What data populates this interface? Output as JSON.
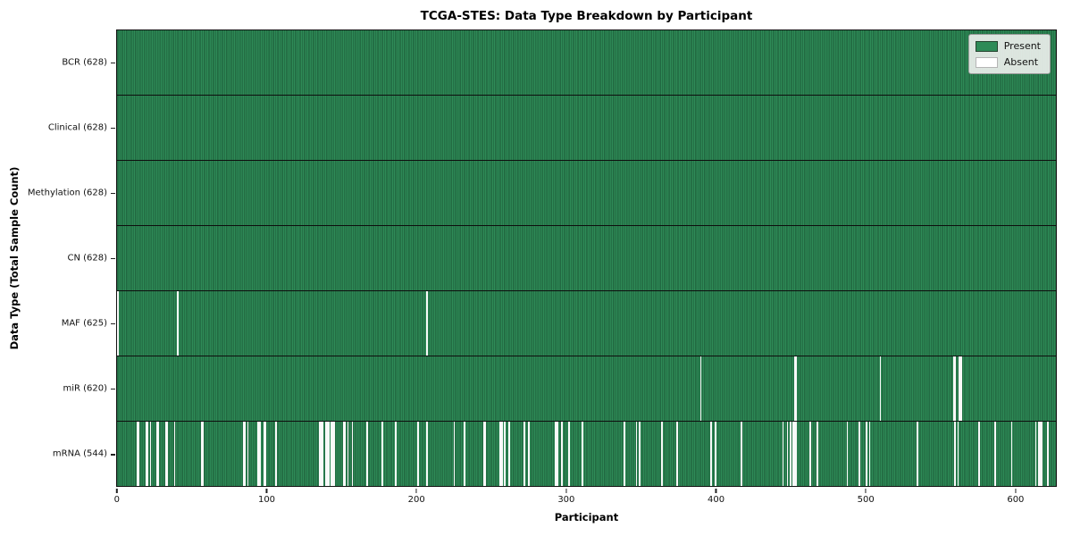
{
  "title": "TCGA-STES: Data Type Breakdown by Participant",
  "colors": {
    "present": "#2e8b57",
    "present_edge": "#16472b",
    "absent": "#ffffff",
    "plot_border": "#141414",
    "legend_bg": "#eceeec"
  },
  "chart_data": {
    "type": "heatmap",
    "title": "TCGA-STES: Data Type Breakdown by Participant",
    "xlabel": "Participant",
    "ylabel": "Data Type (Total Sample Count)",
    "n_participants": 628,
    "x_ticks": [
      0,
      100,
      200,
      300,
      400,
      500,
      600
    ],
    "grid": false,
    "legend_position": "upper right",
    "legend": [
      {
        "label": "Present",
        "color": "#2e8b57"
      },
      {
        "label": "Absent",
        "color": "#ffffff"
      }
    ],
    "rows": [
      {
        "data_type": "BCR",
        "label": "BCR (628)",
        "present_count": 628,
        "absent_participants": []
      },
      {
        "data_type": "Clinical",
        "label": "Clinical (628)",
        "present_count": 628,
        "absent_participants": []
      },
      {
        "data_type": "Methylation",
        "label": "Methylation (628)",
        "present_count": 628,
        "absent_participants": []
      },
      {
        "data_type": "CN",
        "label": "CN (628)",
        "present_count": 628,
        "absent_participants": []
      },
      {
        "data_type": "MAF",
        "label": "MAF (625)",
        "present_count": 625,
        "absent_participants": [
          0,
          40,
          207
        ]
      },
      {
        "data_type": "miR",
        "label": "miR (620)",
        "present_count": 620,
        "absent_participants": [
          390,
          453,
          454,
          510,
          559,
          560,
          563,
          564
        ]
      },
      {
        "data_type": "mRNA",
        "label": "mRNA (544)",
        "present_count": 544,
        "absent_participants": [
          13,
          14,
          19,
          20,
          22,
          26,
          27,
          32,
          33,
          38,
          56,
          57,
          84,
          85,
          87,
          94,
          95,
          98,
          99,
          106,
          135,
          136,
          137,
          139,
          140,
          141,
          143,
          144,
          145,
          151,
          152,
          154,
          157,
          167,
          177,
          186,
          201,
          207,
          225,
          232,
          245,
          246,
          256,
          257,
          259,
          262,
          272,
          275,
          293,
          294,
          297,
          302,
          311,
          339,
          347,
          349,
          364,
          374,
          397,
          400,
          417,
          445,
          448,
          450,
          452,
          453,
          454,
          463,
          468,
          488,
          496,
          501,
          503,
          535,
          560,
          562,
          576,
          587,
          598,
          614,
          616,
          617,
          618,
          622
        ]
      }
    ]
  }
}
